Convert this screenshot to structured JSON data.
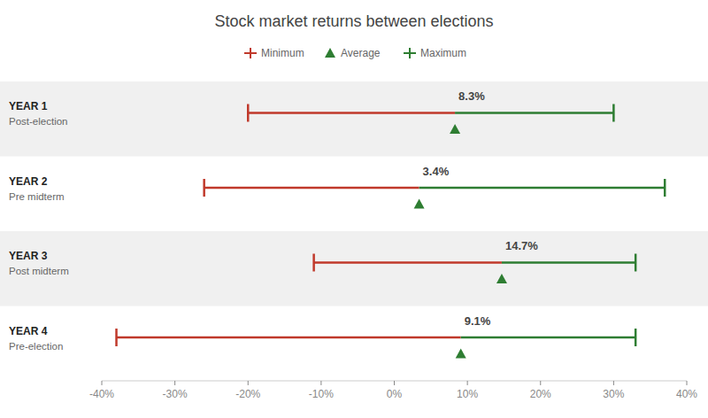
{
  "chart_data": {
    "type": "range",
    "title": "Stock market returns between elections",
    "orientation": "horizontal",
    "legend": "top",
    "grid": false,
    "categories": [
      "YEAR 1",
      "YEAR 2",
      "YEAR 3",
      "YEAR 4"
    ],
    "sub_labels": [
      "Post-election",
      "Pre midterm",
      "Post midterm",
      "Pre-election"
    ],
    "series": [
      {
        "name": "Minimum",
        "color": "#c0392b",
        "marker": "tick",
        "values": [
          -20,
          -26,
          -11,
          -38
        ]
      },
      {
        "name": "Average",
        "color": "#2e7d32",
        "marker": "triangle",
        "data_labels": true,
        "values": [
          8.3,
          3.4,
          14.7,
          9.1
        ],
        "value_labels": [
          "8.3%",
          "3.4%",
          "14.7%",
          "9.1%"
        ]
      },
      {
        "name": "Maximum",
        "color": "#2e7d32",
        "marker": "tick",
        "values": [
          30,
          37,
          33,
          33
        ]
      }
    ],
    "xlim": [
      -40,
      40
    ],
    "xticks": [
      {
        "value": -40,
        "label": "-40%"
      },
      {
        "value": -30,
        "label": "-30%"
      },
      {
        "value": -20,
        "label": "-20%"
      },
      {
        "value": -10,
        "label": "-10%"
      },
      {
        "value": 0,
        "label": "0%"
      },
      {
        "value": 10,
        "label": "10%"
      },
      {
        "value": 20,
        "label": "20%"
      },
      {
        "value": 30,
        "label": "30%"
      },
      {
        "value": 40,
        "label": "40%"
      }
    ]
  }
}
